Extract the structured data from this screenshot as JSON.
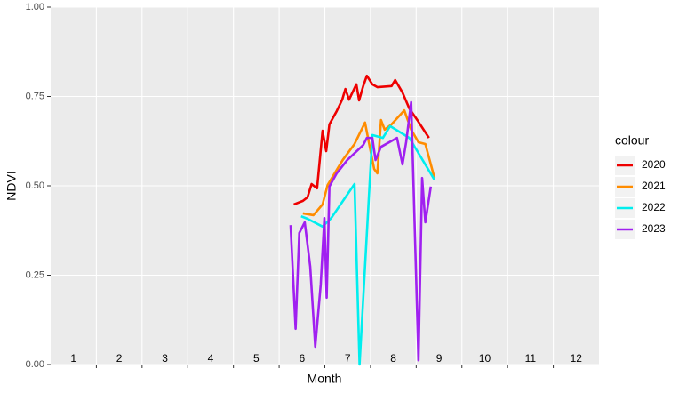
{
  "chart_data": {
    "type": "line",
    "x_label": "Month",
    "y_label": "NDVI",
    "legend_title": "colour",
    "legend_position": "right",
    "xlim": [
      0.5,
      12.5
    ],
    "xticks": [
      1.5,
      2.5,
      3.5,
      4.5,
      5.5,
      6.5,
      7.5,
      8.5,
      9.5,
      10.5,
      11.5
    ],
    "month_labels": [
      1,
      2,
      3,
      4,
      5,
      6,
      7,
      8,
      9,
      10,
      11,
      12
    ],
    "ylim": [
      0,
      1
    ],
    "yticks": [
      {
        "value": 0,
        "label": "0.00"
      },
      {
        "value": 0.25,
        "label": "0.25"
      },
      {
        "value": 0.5,
        "label": "0.50"
      },
      {
        "value": 0.75,
        "label": "0.75"
      },
      {
        "value": 1,
        "label": "1.00"
      }
    ],
    "grid": true,
    "series": [
      {
        "name": "2020",
        "color": "#ee0000",
        "x": [
          5.82,
          6.02,
          6.12,
          6.21,
          6.33,
          6.45,
          6.53,
          6.6,
          6.76,
          6.88,
          6.95,
          7.03,
          7.19,
          7.25,
          7.34,
          7.42,
          7.54,
          7.65,
          7.96,
          8.04,
          8.2,
          8.35,
          8.55,
          8.78
        ],
        "values": [
          0.448,
          0.458,
          0.468,
          0.505,
          0.493,
          0.654,
          0.597,
          0.672,
          0.709,
          0.741,
          0.771,
          0.741,
          0.784,
          0.739,
          0.779,
          0.808,
          0.784,
          0.776,
          0.779,
          0.796,
          0.761,
          0.716,
          0.679,
          0.634
        ]
      },
      {
        "name": "2021",
        "color": "#ff8c00",
        "x": [
          6.02,
          6.25,
          6.45,
          6.56,
          6.89,
          7.15,
          7.38,
          7.46,
          7.58,
          7.65,
          7.73,
          7.81,
          7.96,
          8.24,
          8.39,
          8.55,
          8.7,
          8.9
        ],
        "values": [
          0.423,
          0.418,
          0.448,
          0.502,
          0.572,
          0.617,
          0.677,
          0.624,
          0.547,
          0.535,
          0.684,
          0.657,
          0.672,
          0.711,
          0.657,
          0.622,
          0.617,
          0.522
        ]
      },
      {
        "name": "2022",
        "color": "#00eeee",
        "x": [
          5.98,
          6.12,
          6.45,
          6.64,
          7.15,
          7.26,
          7.54,
          7.77,
          7.93,
          8.35,
          8.9
        ],
        "values": [
          0.415,
          0.408,
          0.386,
          0.41,
          0.505,
          0.0,
          0.642,
          0.634,
          0.667,
          0.634,
          0.517
        ]
      },
      {
        "name": "2023",
        "color": "#a020f0",
        "x": [
          5.75,
          5.86,
          5.94,
          6.06,
          6.18,
          6.29,
          6.41,
          6.49,
          6.54,
          6.6,
          6.76,
          6.99,
          7.34,
          7.42,
          7.54,
          7.61,
          7.73,
          8.08,
          8.2,
          8.28,
          8.39,
          8.47,
          8.55,
          8.63,
          8.7,
          8.82
        ],
        "values": [
          0.39,
          0.1,
          0.368,
          0.398,
          0.274,
          0.05,
          0.224,
          0.41,
          0.187,
          0.498,
          0.535,
          0.572,
          0.614,
          0.634,
          0.634,
          0.572,
          0.609,
          0.634,
          0.56,
          0.622,
          0.734,
          0.373,
          0.012,
          0.522,
          0.398,
          0.498
        ]
      }
    ]
  }
}
